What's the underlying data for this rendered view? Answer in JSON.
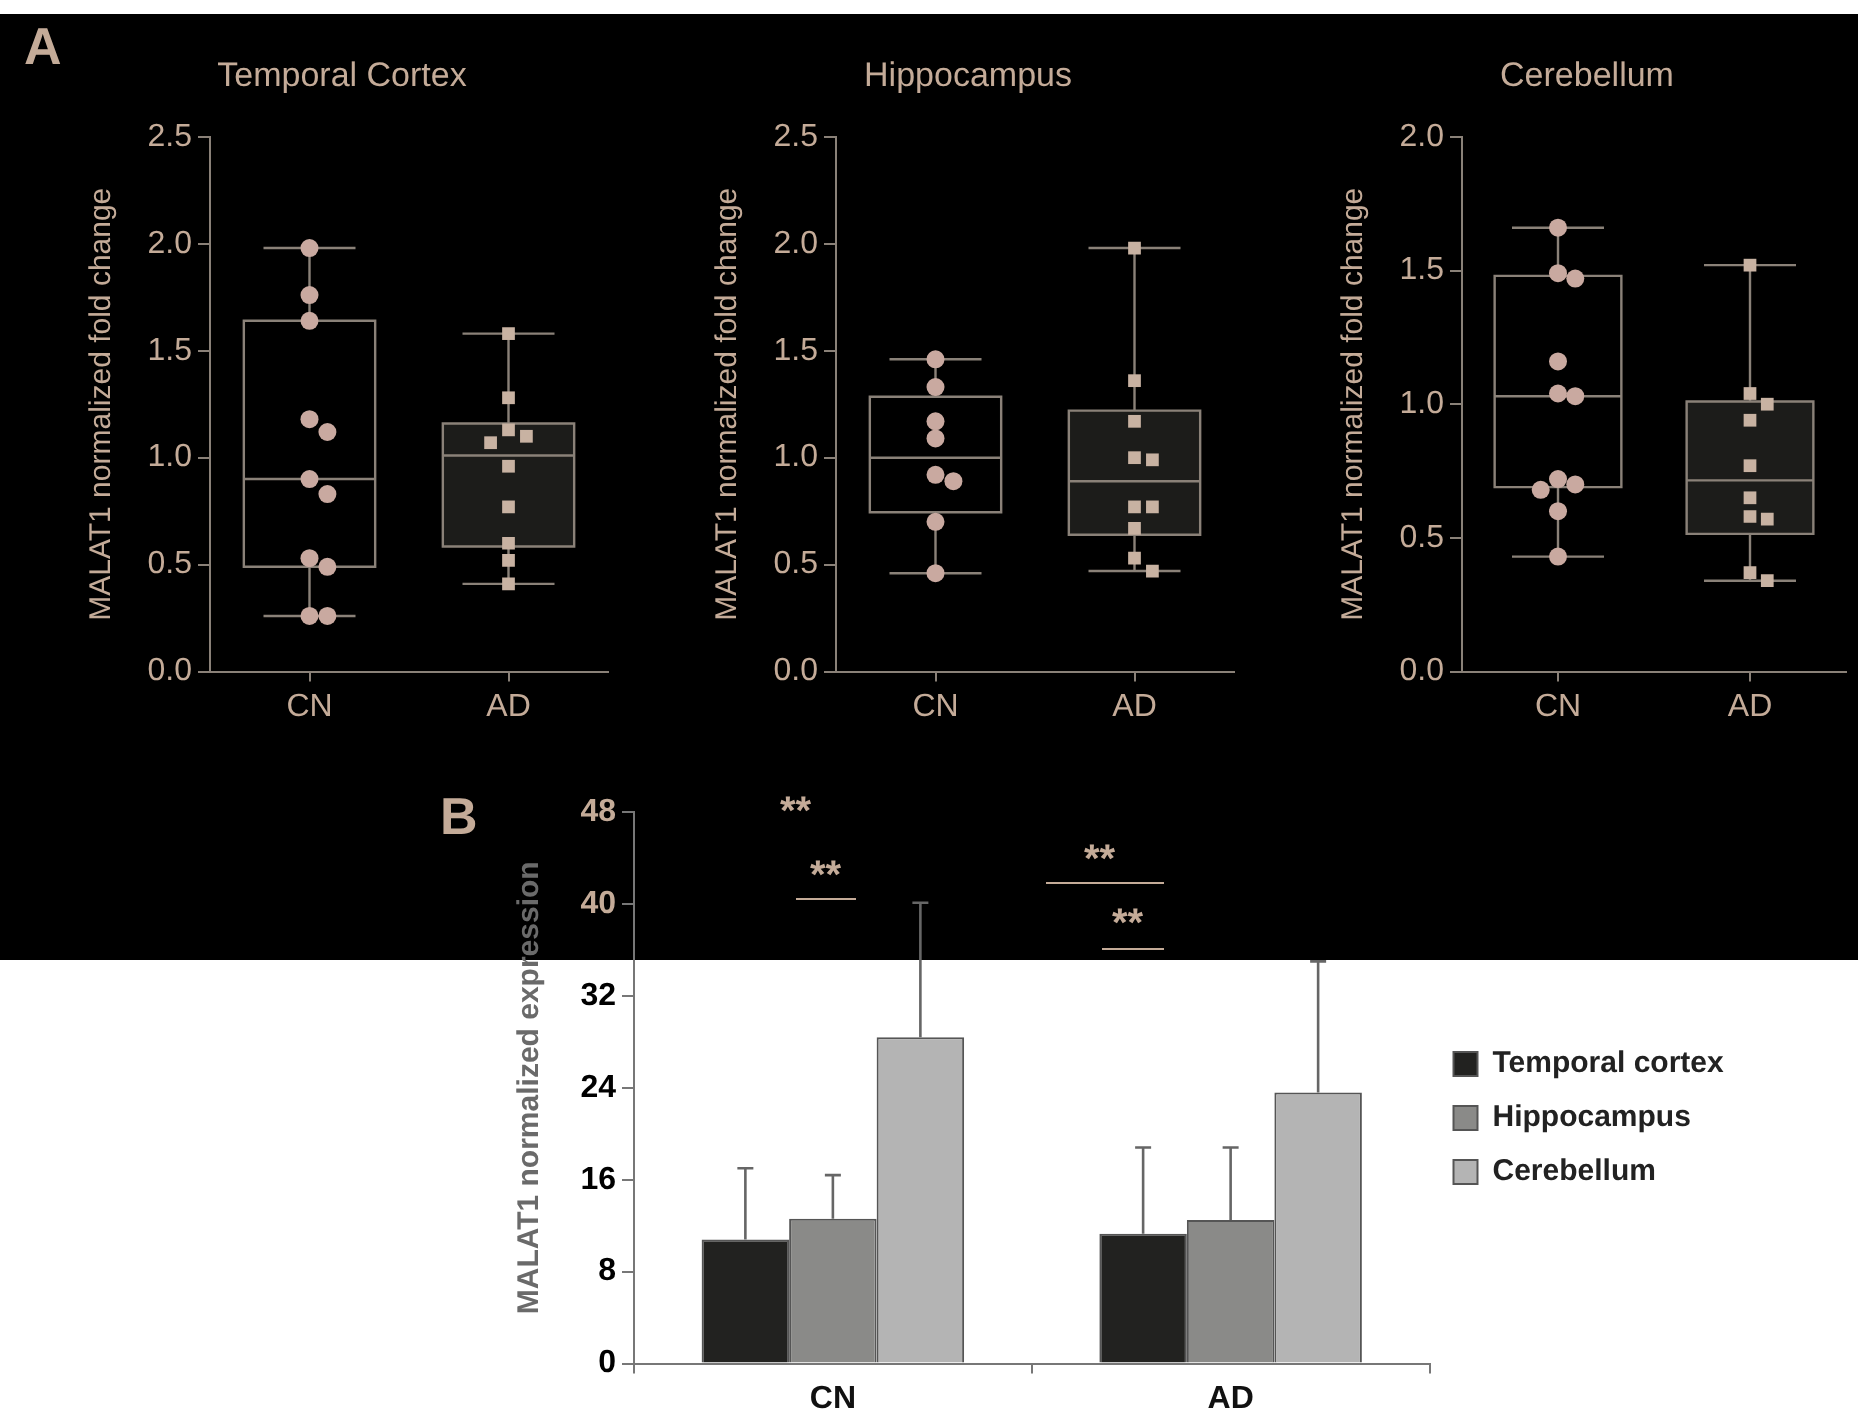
{
  "chart_data": [
    {
      "type": "box",
      "title": "Temporal Cortex",
      "ylabel": "MALAT1 normalized fold change",
      "categories": [
        "CN",
        "AD"
      ],
      "colors": [
        "#000000",
        "#1c1c1a"
      ],
      "boxes": [
        {
          "low": 0.26,
          "q1": 0.49,
          "median": 0.9,
          "q3": 1.64,
          "high": 1.98
        },
        {
          "low": 0.41,
          "q1": 0.585,
          "median": 1.01,
          "q3": 1.16,
          "high": 1.58
        }
      ],
      "series": [
        {
          "type": "scatter",
          "marker": "circle",
          "color": "#c9a9a0",
          "x": [
            "CN",
            "CN",
            "CN",
            "CN",
            "CN",
            "CN",
            "CN",
            "CN",
            "CN",
            "CN",
            "CN"
          ],
          "values": [
            1.98,
            1.76,
            1.64,
            1.18,
            1.12,
            0.9,
            0.83,
            0.53,
            0.49,
            0.26,
            0.26
          ]
        },
        {
          "type": "scatter",
          "marker": "square",
          "color": "#c8b2a2",
          "x": [
            "AD",
            "AD",
            "AD",
            "AD",
            "AD",
            "AD",
            "AD",
            "AD",
            "AD",
            "AD"
          ],
          "values": [
            1.58,
            1.28,
            1.13,
            1.1,
            1.07,
            0.96,
            0.77,
            0.6,
            0.52,
            0.41
          ]
        }
      ],
      "ylim": [
        0,
        2.5
      ],
      "yticks": [
        {
          "value": 0,
          "label": "0.0"
        },
        {
          "value": 0.5,
          "label": "0.5"
        },
        {
          "value": 1,
          "label": "1.0"
        },
        {
          "value": 1.5,
          "label": "1.5"
        },
        {
          "value": 2,
          "label": "2.0"
        },
        {
          "value": 2.5,
          "label": "2.5"
        }
      ],
      "grid": false,
      "legend": false,
      "annotations": [
        "A"
      ]
    },
    {
      "type": "box",
      "title": "Hippocampus",
      "ylabel": "MALAT1 normalized fold change",
      "categories": [
        "CN",
        "AD"
      ],
      "colors": [
        "#000000",
        "#1c1c1a"
      ],
      "boxes": [
        {
          "low": 0.46,
          "q1": 0.745,
          "median": 1.0,
          "q3": 1.285,
          "high": 1.46
        },
        {
          "low": 0.47,
          "q1": 0.64,
          "median": 0.89,
          "q3": 1.22,
          "high": 1.98
        }
      ],
      "series": [
        {
          "type": "scatter",
          "marker": "circle",
          "color": "#c9a9a0",
          "x": [
            "CN",
            "CN",
            "CN",
            "CN",
            "CN",
            "CN",
            "CN",
            "CN"
          ],
          "values": [
            1.46,
            1.33,
            1.17,
            1.09,
            0.92,
            0.89,
            0.7,
            0.46
          ]
        },
        {
          "type": "scatter",
          "marker": "square",
          "color": "#c8b2a2",
          "x": [
            "AD",
            "AD",
            "AD",
            "AD",
            "AD",
            "AD",
            "AD",
            "AD",
            "AD",
            "AD"
          ],
          "values": [
            1.98,
            1.36,
            1.17,
            1.0,
            0.99,
            0.77,
            0.77,
            0.67,
            0.53,
            0.47
          ]
        }
      ],
      "ylim": [
        0,
        2.5
      ],
      "yticks": [
        {
          "value": 0,
          "label": "0.0"
        },
        {
          "value": 0.5,
          "label": "0.5"
        },
        {
          "value": 1,
          "label": "1.0"
        },
        {
          "value": 1.5,
          "label": "1.5"
        },
        {
          "value": 2,
          "label": "2.0"
        },
        {
          "value": 2.5,
          "label": "2.5"
        }
      ],
      "grid": false,
      "legend": false
    },
    {
      "type": "box",
      "title": "Cerebellum",
      "ylabel": "MALAT1 normalized fold change",
      "categories": [
        "CN",
        "AD"
      ],
      "colors": [
        "#000000",
        "#1c1c1a"
      ],
      "boxes": [
        {
          "low": 0.43,
          "q1": 0.69,
          "median": 1.03,
          "q3": 1.48,
          "high": 1.66
        },
        {
          "low": 0.34,
          "q1": 0.515,
          "median": 0.715,
          "q3": 1.01,
          "high": 1.52
        }
      ],
      "series": [
        {
          "type": "scatter",
          "marker": "circle",
          "color": "#c9a9a0",
          "x": [
            "CN",
            "CN",
            "CN",
            "CN",
            "CN",
            "CN",
            "CN",
            "CN",
            "CN",
            "CN",
            "CN"
          ],
          "values": [
            1.66,
            1.49,
            1.47,
            1.16,
            1.04,
            1.03,
            0.72,
            0.7,
            0.68,
            0.6,
            0.43
          ]
        },
        {
          "type": "scatter",
          "marker": "square",
          "color": "#c8b2a2",
          "x": [
            "AD",
            "AD",
            "AD",
            "AD",
            "AD",
            "AD",
            "AD",
            "AD",
            "AD",
            "AD"
          ],
          "values": [
            1.52,
            1.04,
            1.0,
            0.94,
            0.77,
            0.65,
            0.58,
            0.57,
            0.37,
            0.34
          ]
        }
      ],
      "ylim": [
        0,
        2.0
      ],
      "yticks": [
        {
          "value": 0,
          "label": "0.0"
        },
        {
          "value": 0.5,
          "label": "0.5"
        },
        {
          "value": 1,
          "label": "1.0"
        },
        {
          "value": 1.5,
          "label": "1.5"
        },
        {
          "value": 2,
          "label": "2.0"
        }
      ],
      "grid": false,
      "legend": false
    },
    {
      "type": "bar",
      "ylabel": "MALAT1 normalized expression",
      "categories": [
        "CN",
        "AD"
      ],
      "series": [
        {
          "name": "Temporal cortex",
          "color": "#222220",
          "values": [
            10.8,
            11.3
          ],
          "errors": [
            [
              10.8,
              17.0
            ],
            [
              11.3,
              18.8
            ]
          ]
        },
        {
          "name": "Hippocampus",
          "color": "#8a8a88",
          "values": [
            12.6,
            12.5
          ],
          "errors": [
            [
              12.6,
              16.4
            ],
            [
              12.5,
              18.8
            ]
          ]
        },
        {
          "name": "Cerebellum",
          "color": "#b4b4b4",
          "values": [
            28.4,
            23.6
          ],
          "errors": [
            [
              28.4,
              40.1
            ],
            [
              23.6,
              35.0
            ]
          ]
        }
      ],
      "ylim": [
        0,
        48
      ],
      "yticks": [
        0,
        8,
        16,
        24,
        32,
        40,
        48
      ],
      "grid": false,
      "legend": "right",
      "annotations": [
        "B",
        "**",
        "**",
        "**",
        "**"
      ]
    }
  ]
}
